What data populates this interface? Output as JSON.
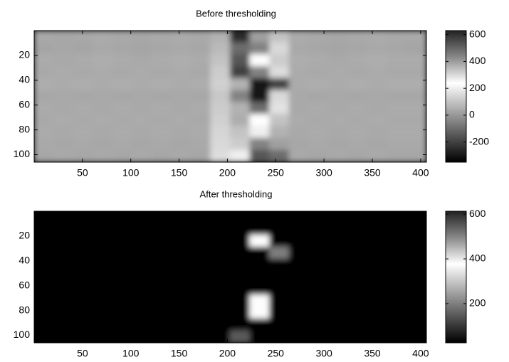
{
  "chart_data": [
    {
      "type": "heatmap",
      "title": "Before thresholding",
      "xlim": [
        0,
        406
      ],
      "xticks": [
        50,
        100,
        150,
        200,
        250,
        300,
        350,
        400
      ],
      "ylim": [
        0,
        106
      ],
      "yticks": [
        20,
        40,
        60,
        80,
        100
      ],
      "clim": [
        -350,
        630
      ],
      "cticks": [
        -200,
        0,
        200,
        400,
        600
      ],
      "colormap": [
        "#000000",
        "#555555",
        "#aaaaaa",
        "#ffffff",
        "#888888",
        "#222222"
      ],
      "z": [
        [
          40,
          35,
          40,
          45,
          40,
          35,
          40,
          45,
          40,
          60,
          -250,
          20,
          100,
          45,
          40,
          35,
          40,
          45,
          40,
          40
        ],
        [
          30,
          35,
          30,
          40,
          35,
          30,
          35,
          40,
          35,
          80,
          -100,
          -50,
          150,
          40,
          35,
          30,
          35,
          40,
          35,
          30
        ],
        [
          45,
          40,
          45,
          50,
          45,
          40,
          45,
          50,
          45,
          100,
          -150,
          240,
          120,
          50,
          45,
          40,
          45,
          50,
          45,
          45
        ],
        [
          40,
          45,
          40,
          45,
          40,
          45,
          40,
          45,
          40,
          120,
          -200,
          -50,
          160,
          45,
          40,
          45,
          40,
          45,
          40,
          40
        ],
        [
          50,
          45,
          50,
          45,
          50,
          45,
          50,
          45,
          50,
          130,
          60,
          -300,
          -200,
          45,
          50,
          45,
          50,
          45,
          50,
          50
        ],
        [
          35,
          40,
          35,
          40,
          35,
          40,
          35,
          40,
          35,
          110,
          -50,
          -300,
          150,
          40,
          35,
          40,
          35,
          40,
          35,
          35
        ],
        [
          45,
          40,
          45,
          40,
          45,
          40,
          45,
          40,
          45,
          120,
          60,
          -100,
          170,
          40,
          45,
          40,
          45,
          40,
          45,
          45
        ],
        [
          40,
          45,
          40,
          45,
          40,
          45,
          40,
          45,
          40,
          130,
          50,
          240,
          100,
          45,
          40,
          45,
          40,
          45,
          40,
          40
        ],
        [
          45,
          40,
          45,
          40,
          45,
          40,
          45,
          40,
          45,
          140,
          100,
          200,
          60,
          40,
          45,
          40,
          45,
          40,
          45,
          45
        ],
        [
          40,
          35,
          40,
          35,
          40,
          35,
          40,
          35,
          40,
          150,
          120,
          -50,
          20,
          35,
          40,
          35,
          40,
          35,
          40,
          40
        ],
        [
          35,
          40,
          35,
          40,
          35,
          40,
          35,
          40,
          35,
          160,
          200,
          -150,
          -100,
          40,
          35,
          40,
          35,
          40,
          35,
          35
        ]
      ]
    },
    {
      "type": "heatmap",
      "title": "After thresholding",
      "xlim": [
        0,
        406
      ],
      "xticks": [
        50,
        100,
        150,
        200,
        250,
        300,
        350,
        400
      ],
      "ylim": [
        0,
        106
      ],
      "yticks": [
        20,
        40,
        60,
        80,
        100
      ],
      "clim": [
        25,
        613
      ],
      "cticks": [
        200,
        400,
        600
      ],
      "colormap": [
        "#000000",
        "#555555",
        "#aaaaaa",
        "#ffffff",
        "#888888",
        "#222222"
      ],
      "z": [
        [
          25,
          25,
          25,
          25,
          25,
          25,
          25,
          25,
          25,
          25,
          25,
          25,
          25,
          25,
          25,
          25,
          25,
          25,
          25,
          25
        ],
        [
          25,
          25,
          25,
          25,
          25,
          25,
          25,
          25,
          25,
          25,
          25,
          25,
          25,
          25,
          25,
          25,
          25,
          25,
          25,
          25
        ],
        [
          25,
          25,
          25,
          25,
          25,
          25,
          25,
          25,
          25,
          25,
          25,
          380,
          25,
          25,
          25,
          25,
          25,
          25,
          25,
          25
        ],
        [
          25,
          25,
          25,
          25,
          25,
          25,
          25,
          25,
          25,
          25,
          25,
          25,
          200,
          25,
          25,
          25,
          25,
          25,
          25,
          25
        ],
        [
          25,
          25,
          25,
          25,
          25,
          25,
          25,
          25,
          25,
          25,
          25,
          25,
          25,
          25,
          25,
          25,
          25,
          25,
          25,
          25
        ],
        [
          25,
          25,
          25,
          25,
          25,
          25,
          25,
          25,
          25,
          25,
          25,
          25,
          25,
          25,
          25,
          25,
          25,
          25,
          25,
          25
        ],
        [
          25,
          25,
          25,
          25,
          25,
          25,
          25,
          25,
          25,
          25,
          25,
          25,
          25,
          25,
          25,
          25,
          25,
          25,
          25,
          25
        ],
        [
          25,
          25,
          25,
          25,
          25,
          25,
          25,
          25,
          25,
          25,
          25,
          380,
          25,
          25,
          25,
          25,
          25,
          25,
          25,
          25
        ],
        [
          25,
          25,
          25,
          25,
          25,
          25,
          25,
          25,
          25,
          25,
          25,
          380,
          25,
          25,
          25,
          25,
          25,
          25,
          25,
          25
        ],
        [
          25,
          25,
          25,
          25,
          25,
          25,
          25,
          25,
          25,
          25,
          25,
          25,
          25,
          25,
          25,
          25,
          25,
          25,
          25,
          25
        ],
        [
          25,
          25,
          25,
          25,
          25,
          25,
          25,
          25,
          25,
          25,
          150,
          25,
          25,
          25,
          25,
          25,
          25,
          25,
          25,
          25
        ]
      ]
    }
  ]
}
